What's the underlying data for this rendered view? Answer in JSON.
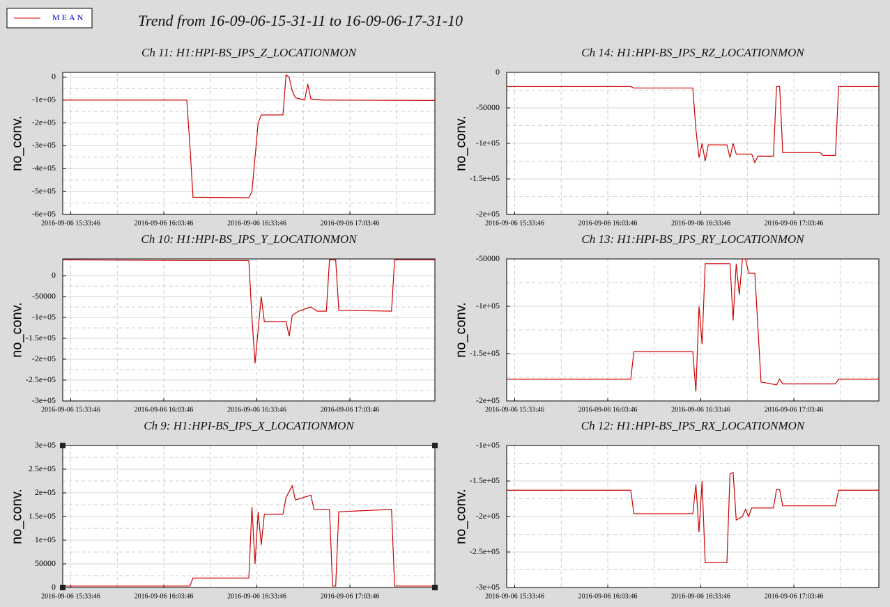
{
  "legend": {
    "name": "MEAN",
    "color": "#cc0000"
  },
  "title": "Trend from 16-09-06-15-31-11 to 16-09-06-17-31-10",
  "chart_data": [
    {
      "type": "line",
      "title": "Ch 11: H1:HPI-BS_IPS_Z_LOCATIONMON",
      "ylabel": "no_conv.",
      "color": "#cc0000",
      "xlim": [
        "2016-09-06 15:31:11",
        "2016-09-06 17:31:10"
      ],
      "xticks": [
        "2016-09-06 15:33:46",
        "2016-09-06 16:03:46",
        "2016-09-06 16:33:46",
        "2016-09-06 17:03:46"
      ],
      "ylim": [
        -600000,
        21000
      ],
      "yticks": [
        0,
        {
          "value": -100000,
          "label": "-1e+05"
        },
        {
          "value": -200000,
          "label": "-2e+05"
        },
        {
          "value": -300000,
          "label": "-3e+05"
        },
        {
          "value": -400000,
          "label": "-4e+05"
        },
        {
          "value": -500000,
          "label": "-5e+05"
        },
        {
          "value": -600000,
          "label": "-6e+05"
        }
      ],
      "x": [
        "2016-09-06 15:31:11",
        "2016-09-06 16:11:11",
        "2016-09-06 16:12:11",
        "2016-09-06 16:13:11",
        "2016-09-06 16:31:11",
        "2016-09-06 16:32:11",
        "2016-09-06 16:33:11",
        "2016-09-06 16:34:11",
        "2016-09-06 16:35:11",
        "2016-09-06 16:42:11",
        "2016-09-06 16:43:11",
        "2016-09-06 16:44:11",
        "2016-09-06 16:45:11",
        "2016-09-06 16:46:11",
        "2016-09-06 16:49:11",
        "2016-09-06 16:50:11",
        "2016-09-06 16:51:11",
        "2016-09-06 16:55:11",
        "2016-09-06 17:31:10"
      ],
      "values": [
        -100000,
        -100000,
        -300000,
        -525000,
        -527000,
        -500000,
        -350000,
        -200000,
        -165000,
        -165000,
        10000,
        0,
        -60000,
        -90000,
        -100000,
        -30000,
        -95000,
        -100000,
        -102000
      ]
    },
    {
      "type": "line",
      "title": "Ch 14: H1:HPI-BS_IPS_RZ_LOCATIONMON",
      "ylabel": "no_conv.",
      "color": "#cc0000",
      "xlim": [
        "2016-09-06 15:31:11",
        "2016-09-06 17:31:10"
      ],
      "xticks": [
        "2016-09-06 15:33:46",
        "2016-09-06 16:03:46",
        "2016-09-06 16:33:46",
        "2016-09-06 17:03:46"
      ],
      "ylim": [
        -200000,
        0
      ],
      "yticks": [
        0,
        -50000,
        {
          "value": -100000,
          "label": "-1e+05"
        },
        {
          "value": -150000,
          "label": "-1.5e+05"
        },
        {
          "value": -200000,
          "label": "-2e+05"
        }
      ],
      "x": [
        "2016-09-06 15:31:11",
        "2016-09-06 16:11:11",
        "2016-09-06 16:12:11",
        "2016-09-06 16:31:11",
        "2016-09-06 16:32:11",
        "2016-09-06 16:33:11",
        "2016-09-06 16:34:11",
        "2016-09-06 16:35:11",
        "2016-09-06 16:36:11",
        "2016-09-06 16:42:11",
        "2016-09-06 16:43:11",
        "2016-09-06 16:44:11",
        "2016-09-06 16:45:11",
        "2016-09-06 16:50:11",
        "2016-09-06 16:51:11",
        "2016-09-06 16:52:11",
        "2016-09-06 16:57:11",
        "2016-09-06 16:58:11",
        "2016-09-06 16:59:11",
        "2016-09-06 17:00:11",
        "2016-09-06 17:12:11",
        "2016-09-06 17:13:11",
        "2016-09-06 17:17:11",
        "2016-09-06 17:18:11",
        "2016-09-06 17:31:10"
      ],
      "values": [
        -20000,
        -20000,
        -22000,
        -22000,
        -80000,
        -120000,
        -100000,
        -125000,
        -102000,
        -102000,
        -120000,
        -100000,
        -115000,
        -115000,
        -127000,
        -118000,
        -118000,
        -20000,
        -20000,
        -113000,
        -113000,
        -117000,
        -117000,
        -20000,
        -20000
      ]
    },
    {
      "type": "line",
      "title": "Ch 10: H1:HPI-BS_IPS_Y_LOCATIONMON",
      "ylabel": "no_conv.",
      "color": "#cc0000",
      "xlim": [
        "2016-09-06 15:31:11",
        "2016-09-06 17:31:10"
      ],
      "xticks": [
        "2016-09-06 15:33:46",
        "2016-09-06 16:03:46",
        "2016-09-06 16:33:46",
        "2016-09-06 17:03:46"
      ],
      "ylim": [
        -300000,
        40000
      ],
      "yticks": [
        0,
        -50000,
        {
          "value": -100000,
          "label": "-1e+05"
        },
        {
          "value": -150000,
          "label": "-1.5e+05"
        },
        {
          "value": -200000,
          "label": "-2e+05"
        },
        {
          "value": -250000,
          "label": "-2.5e+05"
        },
        {
          "value": -300000,
          "label": "-3e+05"
        }
      ],
      "x": [
        "2016-09-06 15:31:11",
        "2016-09-06 16:12:11",
        "2016-09-06 16:31:11",
        "2016-09-06 16:32:11",
        "2016-09-06 16:33:11",
        "2016-09-06 16:34:11",
        "2016-09-06 16:35:11",
        "2016-09-06 16:36:11",
        "2016-09-06 16:43:11",
        "2016-09-06 16:44:11",
        "2016-09-06 16:45:11",
        "2016-09-06 16:47:11",
        "2016-09-06 16:49:11",
        "2016-09-06 16:51:11",
        "2016-09-06 16:53:11",
        "2016-09-06 16:56:11",
        "2016-09-06 16:57:11",
        "2016-09-06 16:59:11",
        "2016-09-06 17:00:11",
        "2016-09-06 17:17:11",
        "2016-09-06 17:18:11",
        "2016-09-06 17:31:10"
      ],
      "values": [
        38000,
        36000,
        36000,
        -100000,
        -210000,
        -130000,
        -50000,
        -110000,
        -110000,
        -145000,
        -95000,
        -85000,
        -80000,
        -75000,
        -85000,
        -85000,
        38000,
        38000,
        -83000,
        -85000,
        38000,
        38000
      ]
    },
    {
      "type": "line",
      "title": "Ch 13: H1:HPI-BS_IPS_RY_LOCATIONMON",
      "ylabel": "no_conv.",
      "color": "#cc0000",
      "xlim": [
        "2016-09-06 15:31:11",
        "2016-09-06 17:31:10"
      ],
      "xticks": [
        "2016-09-06 15:33:46",
        "2016-09-06 16:03:46",
        "2016-09-06 16:33:46",
        "2016-09-06 17:03:46"
      ],
      "ylim": [
        -200000,
        -50000
      ],
      "yticks": [
        -50000,
        {
          "value": -100000,
          "label": "-1e+05"
        },
        {
          "value": -150000,
          "label": "-1.5e+05"
        },
        {
          "value": -200000,
          "label": "-2e+05"
        }
      ],
      "x": [
        "2016-09-06 15:31:11",
        "2016-09-06 16:11:11",
        "2016-09-06 16:12:11",
        "2016-09-06 16:31:11",
        "2016-09-06 16:32:11",
        "2016-09-06 16:33:11",
        "2016-09-06 16:34:11",
        "2016-09-06 16:35:11",
        "2016-09-06 16:43:11",
        "2016-09-06 16:44:11",
        "2016-09-06 16:45:11",
        "2016-09-06 16:46:11",
        "2016-09-06 16:47:11",
        "2016-09-06 16:48:11",
        "2016-09-06 16:49:11",
        "2016-09-06 16:51:11",
        "2016-09-06 16:53:11",
        "2016-09-06 16:58:11",
        "2016-09-06 16:59:11",
        "2016-09-06 17:00:11",
        "2016-09-06 17:17:11",
        "2016-09-06 17:18:11",
        "2016-09-06 17:31:10"
      ],
      "values": [
        -177000,
        -177000,
        -148000,
        -148000,
        -190000,
        -100000,
        -140000,
        -55000,
        -55000,
        -115000,
        -55000,
        -88000,
        -50000,
        -50000,
        -65000,
        -65000,
        -180000,
        -183000,
        -177000,
        -182000,
        -182000,
        -177000,
        -177000
      ]
    },
    {
      "type": "line",
      "title": "Ch 9: H1:HPI-BS_IPS_X_LOCATIONMON",
      "ylabel": "no_conv.",
      "color": "#cc0000",
      "xlim": [
        "2016-09-06 15:31:11",
        "2016-09-06 17:31:10"
      ],
      "xticks": [
        "2016-09-06 15:33:46",
        "2016-09-06 16:03:46",
        "2016-09-06 16:33:46",
        "2016-09-06 17:03:46"
      ],
      "ylim": [
        0,
        300000
      ],
      "yticks": [
        0,
        50000,
        {
          "value": 100000,
          "label": "1e+05"
        },
        {
          "value": 150000,
          "label": "1.5e+05"
        },
        {
          "value": 200000,
          "label": "2e+05"
        },
        {
          "value": 250000,
          "label": "2.5e+05"
        },
        {
          "value": 300000,
          "label": "3e+05"
        }
      ],
      "x": [
        "2016-09-06 15:31:11",
        "2016-09-06 16:12:11",
        "2016-09-06 16:13:11",
        "2016-09-06 16:31:11",
        "2016-09-06 16:32:11",
        "2016-09-06 16:33:11",
        "2016-09-06 16:34:11",
        "2016-09-06 16:35:11",
        "2016-09-06 16:36:11",
        "2016-09-06 16:42:11",
        "2016-09-06 16:43:11",
        "2016-09-06 16:45:11",
        "2016-09-06 16:46:11",
        "2016-09-06 16:51:11",
        "2016-09-06 16:52:11",
        "2016-09-06 16:57:11",
        "2016-09-06 16:58:11",
        "2016-09-06 16:59:11",
        "2016-09-06 17:00:11",
        "2016-09-06 17:17:11",
        "2016-09-06 17:18:11",
        "2016-09-06 17:31:10"
      ],
      "values": [
        3000,
        3000,
        20000,
        20000,
        170000,
        50000,
        160000,
        90000,
        155000,
        155000,
        190000,
        215000,
        185000,
        195000,
        165000,
        165000,
        3000,
        3000,
        160000,
        165000,
        3000,
        3000
      ]
    },
    {
      "type": "line",
      "title": "Ch 12: H1:HPI-BS_IPS_RX_LOCATIONMON",
      "ylabel": "no_conv.",
      "color": "#cc0000",
      "xlim": [
        "2016-09-06 15:31:11",
        "2016-09-06 17:31:10"
      ],
      "xticks": [
        "2016-09-06 15:33:46",
        "2016-09-06 16:03:46",
        "2016-09-06 16:33:46",
        "2016-09-06 17:03:46"
      ],
      "ylim": [
        -300000,
        -100000
      ],
      "yticks": [
        {
          "value": -100000,
          "label": "-1e+05"
        },
        {
          "value": -150000,
          "label": "-1.5e+05"
        },
        {
          "value": -200000,
          "label": "-2e+05"
        },
        {
          "value": -250000,
          "label": "-2.5e+05"
        },
        {
          "value": -300000,
          "label": "-3e+05"
        }
      ],
      "x": [
        "2016-09-06 15:31:11",
        "2016-09-06 16:11:11",
        "2016-09-06 16:12:11",
        "2016-09-06 16:31:11",
        "2016-09-06 16:32:11",
        "2016-09-06 16:33:11",
        "2016-09-06 16:34:11",
        "2016-09-06 16:35:11",
        "2016-09-06 16:42:11",
        "2016-09-06 16:43:11",
        "2016-09-06 16:44:11",
        "2016-09-06 16:45:11",
        "2016-09-06 16:47:11",
        "2016-09-06 16:48:11",
        "2016-09-06 16:49:11",
        "2016-09-06 16:50:11",
        "2016-09-06 16:57:11",
        "2016-09-06 16:58:11",
        "2016-09-06 16:59:11",
        "2016-09-06 17:00:11",
        "2016-09-06 17:17:11",
        "2016-09-06 17:18:11",
        "2016-09-06 17:31:10"
      ],
      "values": [
        -163000,
        -163000,
        -196000,
        -196000,
        -155000,
        -222000,
        -150000,
        -265000,
        -265000,
        -140000,
        -138000,
        -205000,
        -200000,
        -190000,
        -200000,
        -188000,
        -188000,
        -162000,
        -162000,
        -185000,
        -185000,
        -163000,
        -163000
      ]
    }
  ]
}
